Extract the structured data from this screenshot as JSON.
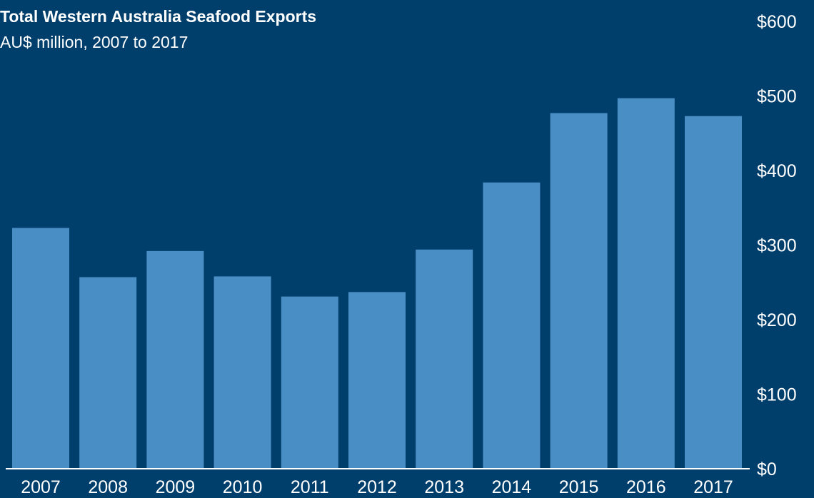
{
  "chart_data": {
    "type": "bar",
    "title": "Total Western Australia Seafood Exports",
    "subtitle": "AU$ million, 2007 to 2017",
    "categories": [
      "2007",
      "2008",
      "2009",
      "2010",
      "2011",
      "2012",
      "2013",
      "2014",
      "2015",
      "2016",
      "2017"
    ],
    "values": [
      323,
      257,
      292,
      258,
      231,
      237,
      294,
      384,
      477,
      497,
      473
    ],
    "ylim": [
      0,
      600
    ],
    "y_ticks": [
      0,
      100,
      200,
      300,
      400,
      500,
      600
    ],
    "y_tick_labels": [
      "$0",
      "$100",
      "$200",
      "$300",
      "$400",
      "$500",
      "$600"
    ],
    "y_axis_position": "right",
    "grid": false,
    "legend": "none",
    "colors": {
      "background": "#003e6b",
      "bar": "#4a8ec6",
      "axis": "#ffffff",
      "text": "#ffffff"
    }
  }
}
